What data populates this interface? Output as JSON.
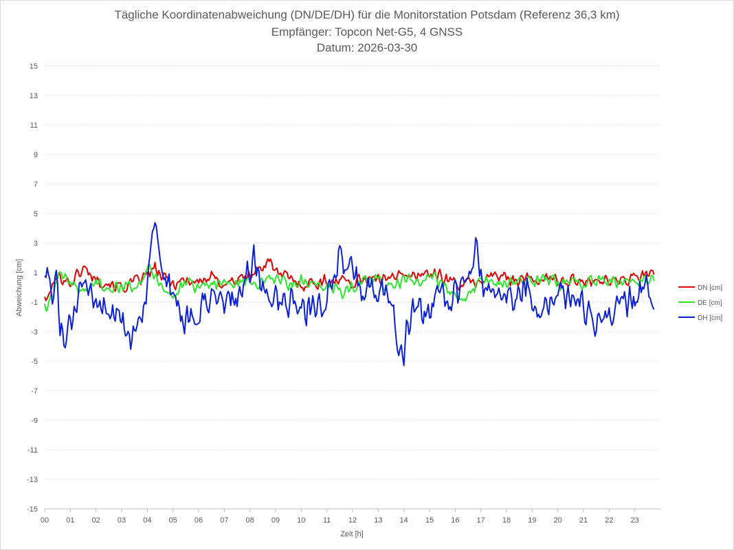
{
  "chart_data": {
    "type": "line",
    "title": "Tägliche Koordinatenabweichung (DN/DE/DH) für die Monitorstation Potsdam (Referenz 36,3 km)",
    "subtitle": "Empfänger: Topcon Net-G5, 4 GNSS",
    "date_line": "Datum: 2026-03-30",
    "xlabel": "Zeit [h]",
    "ylabel": "Abweichung [cm]",
    "x_ticks": [
      "00",
      "01",
      "02",
      "03",
      "04",
      "05",
      "06",
      "07",
      "08",
      "09",
      "10",
      "11",
      "12",
      "13",
      "14",
      "15",
      "16",
      "17",
      "18",
      "19",
      "20",
      "21",
      "22",
      "23"
    ],
    "y_ticks": [
      15,
      13,
      11,
      9,
      7,
      5,
      3,
      1,
      -1,
      -3,
      -5,
      -7,
      -9,
      -11,
      -13,
      -15
    ],
    "xlim": [
      0,
      24
    ],
    "ylim": [
      -15,
      15
    ],
    "grid": "horizontal-dotted",
    "legend_position": "right",
    "sample_interval_minutes": 3,
    "series": [
      {
        "name": "DN [cm]",
        "color": "#e00000",
        "anchors": [
          [
            0.0,
            -0.5
          ],
          [
            0.1,
            -1.0
          ],
          [
            0.3,
            0.2
          ],
          [
            0.6,
            0.8
          ],
          [
            1.0,
            0.3
          ],
          [
            1.5,
            1.3
          ],
          [
            2.0,
            0.6
          ],
          [
            2.5,
            0.3
          ],
          [
            3.0,
            0.0
          ],
          [
            3.5,
            0.3
          ],
          [
            4.0,
            0.8
          ],
          [
            4.3,
            1.3
          ],
          [
            4.6,
            0.6
          ],
          [
            5.0,
            0.3
          ],
          [
            5.5,
            0.5
          ],
          [
            6.0,
            0.4
          ],
          [
            6.5,
            0.6
          ],
          [
            7.0,
            0.3
          ],
          [
            7.5,
            0.5
          ],
          [
            8.0,
            0.8
          ],
          [
            8.5,
            1.4
          ],
          [
            8.8,
            2.0
          ],
          [
            9.0,
            1.0
          ],
          [
            9.5,
            0.6
          ],
          [
            10.0,
            0.2
          ],
          [
            10.5,
            0.3
          ],
          [
            11.0,
            0.4
          ],
          [
            11.5,
            0.5
          ],
          [
            12.0,
            0.3
          ],
          [
            12.5,
            0.7
          ],
          [
            13.0,
            0.4
          ],
          [
            13.5,
            1.0
          ],
          [
            14.0,
            0.6
          ],
          [
            14.5,
            0.9
          ],
          [
            15.0,
            1.0
          ],
          [
            15.5,
            0.7
          ],
          [
            16.0,
            0.3
          ],
          [
            16.5,
            0.2
          ],
          [
            17.0,
            0.5
          ],
          [
            17.5,
            0.8
          ],
          [
            18.0,
            0.6
          ],
          [
            18.5,
            0.6
          ],
          [
            19.0,
            0.5
          ],
          [
            19.5,
            0.6
          ],
          [
            20.0,
            0.5
          ],
          [
            20.5,
            0.4
          ],
          [
            21.0,
            0.5
          ],
          [
            21.5,
            0.6
          ],
          [
            22.0,
            0.4
          ],
          [
            22.5,
            0.5
          ],
          [
            23.0,
            0.6
          ],
          [
            23.5,
            0.9
          ],
          [
            23.75,
            0.8
          ]
        ]
      },
      {
        "name": "DE [cm]",
        "color": "#2ee52e",
        "anchors": [
          [
            0.0,
            -1.2
          ],
          [
            0.1,
            -1.6
          ],
          [
            0.3,
            -0.4
          ],
          [
            0.6,
            0.7
          ],
          [
            1.0,
            0.3
          ],
          [
            1.5,
            -0.3
          ],
          [
            2.0,
            0.3
          ],
          [
            2.5,
            0.1
          ],
          [
            3.0,
            -0.1
          ],
          [
            3.5,
            0.3
          ],
          [
            3.8,
            0.6
          ],
          [
            4.1,
            1.7
          ],
          [
            4.3,
            0.6
          ],
          [
            4.6,
            0.2
          ],
          [
            5.0,
            -0.6
          ],
          [
            5.5,
            0.2
          ],
          [
            6.0,
            0.0
          ],
          [
            6.5,
            0.4
          ],
          [
            7.0,
            0.2
          ],
          [
            7.5,
            0.3
          ],
          [
            8.0,
            0.5
          ],
          [
            8.5,
            0.2
          ],
          [
            9.0,
            0.6
          ],
          [
            9.5,
            0.2
          ],
          [
            10.0,
            0.4
          ],
          [
            10.5,
            -0.1
          ],
          [
            11.0,
            0.1
          ],
          [
            11.5,
            -0.4
          ],
          [
            12.0,
            0.1
          ],
          [
            12.5,
            0.3
          ],
          [
            13.0,
            0.5
          ],
          [
            13.5,
            0.1
          ],
          [
            14.0,
            0.4
          ],
          [
            14.5,
            0.4
          ],
          [
            15.0,
            0.7
          ],
          [
            15.5,
            0.3
          ],
          [
            16.0,
            -0.5
          ],
          [
            16.3,
            -1.0
          ],
          [
            16.6,
            -0.3
          ],
          [
            17.0,
            0.6
          ],
          [
            17.5,
            0.4
          ],
          [
            18.0,
            0.2
          ],
          [
            18.5,
            0.5
          ],
          [
            19.0,
            0.3
          ],
          [
            19.5,
            0.5
          ],
          [
            20.0,
            0.3
          ],
          [
            20.5,
            0.4
          ],
          [
            21.0,
            0.2
          ],
          [
            21.5,
            0.4
          ],
          [
            22.0,
            0.5
          ],
          [
            22.5,
            0.3
          ],
          [
            23.0,
            0.6
          ],
          [
            23.5,
            0.4
          ],
          [
            23.75,
            0.5
          ]
        ]
      },
      {
        "name": "DH [cm]",
        "color": "#0a1fd6",
        "anchors": [
          [
            0.0,
            1.5
          ],
          [
            0.2,
            -0.5
          ],
          [
            0.5,
            0.6
          ],
          [
            0.6,
            -2.0
          ],
          [
            0.8,
            -3.8
          ],
          [
            1.0,
            -3.0
          ],
          [
            1.3,
            -0.5
          ],
          [
            1.6,
            -0.6
          ],
          [
            2.0,
            -1.0
          ],
          [
            2.5,
            -1.2
          ],
          [
            3.0,
            -2.5
          ],
          [
            3.3,
            -4.0
          ],
          [
            3.6,
            -2.2
          ],
          [
            4.0,
            -0.4
          ],
          [
            4.2,
            2.5
          ],
          [
            4.35,
            3.6
          ],
          [
            4.5,
            1.0
          ],
          [
            4.8,
            0.3
          ],
          [
            5.2,
            -1.5
          ],
          [
            5.6,
            -2.8
          ],
          [
            6.0,
            -1.5
          ],
          [
            6.5,
            -1.2
          ],
          [
            7.0,
            -1.0
          ],
          [
            7.5,
            -0.6
          ],
          [
            8.0,
            1.2
          ],
          [
            8.2,
            1.8
          ],
          [
            8.5,
            -0.4
          ],
          [
            9.0,
            -0.8
          ],
          [
            9.5,
            -1.2
          ],
          [
            10.0,
            -1.5
          ],
          [
            10.5,
            -1.0
          ],
          [
            11.0,
            -0.5
          ],
          [
            11.3,
            0.5
          ],
          [
            11.5,
            2.6
          ],
          [
            11.8,
            1.8
          ],
          [
            12.0,
            0.7
          ],
          [
            12.5,
            -0.6
          ],
          [
            12.8,
            0.6
          ],
          [
            13.0,
            -0.3
          ],
          [
            13.4,
            -0.6
          ],
          [
            13.7,
            -2.5
          ],
          [
            13.9,
            -5.0
          ],
          [
            14.1,
            -3.0
          ],
          [
            14.4,
            -1.5
          ],
          [
            14.8,
            -2.5
          ],
          [
            15.0,
            -1.8
          ],
          [
            15.3,
            -0.5
          ],
          [
            15.6,
            -0.7
          ],
          [
            16.0,
            -0.8
          ],
          [
            16.3,
            -0.3
          ],
          [
            16.6,
            1.5
          ],
          [
            16.8,
            2.5
          ],
          [
            17.0,
            0.7
          ],
          [
            17.5,
            -0.4
          ],
          [
            18.0,
            -0.5
          ],
          [
            18.5,
            -0.2
          ],
          [
            18.8,
            0.8
          ],
          [
            19.0,
            -1.3
          ],
          [
            19.2,
            -2.0
          ],
          [
            19.5,
            -0.6
          ],
          [
            20.0,
            -0.4
          ],
          [
            20.5,
            -0.6
          ],
          [
            21.0,
            -1.2
          ],
          [
            21.3,
            -2.6
          ],
          [
            21.5,
            -3.0
          ],
          [
            21.8,
            -1.2
          ],
          [
            22.0,
            -1.8
          ],
          [
            22.5,
            -1.0
          ],
          [
            23.0,
            -0.8
          ],
          [
            23.3,
            0.0
          ],
          [
            23.6,
            -0.3
          ],
          [
            23.75,
            -1.0
          ]
        ]
      }
    ]
  }
}
